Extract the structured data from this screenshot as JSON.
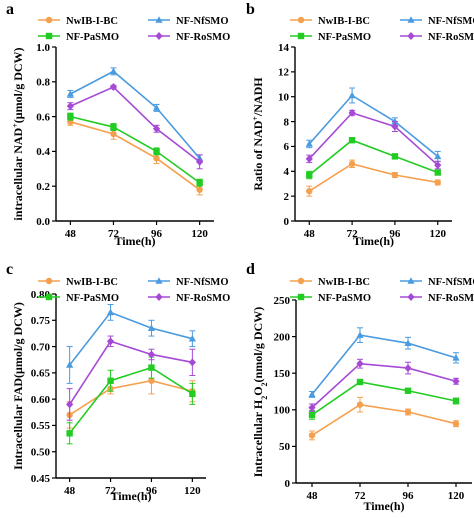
{
  "legend": {
    "entries": [
      {
        "name": "NwIB-I-BC",
        "color": "#F5A04E",
        "marker": "circle"
      },
      {
        "name": "NF-NfSMO",
        "color": "#4A9BE0",
        "marker": "triangle"
      },
      {
        "name": "NF-PaSMO",
        "color": "#22CC22",
        "marker": "square"
      },
      {
        "name": "NF-RoSMO",
        "color": "#A64AD6",
        "marker": "diamond"
      }
    ]
  },
  "chart_data": [
    {
      "panel": "a",
      "type": "line",
      "ylabel": "intracellular NAD+(μmol/g DCW)",
      "xlabel": "Time(h)",
      "x": [
        48,
        72,
        96,
        120
      ],
      "xlim": [
        40,
        128
      ],
      "ylim": [
        0.0,
        1.0
      ],
      "yticks": [
        "0.0",
        "0.2",
        "0.4",
        "0.6",
        "0.8",
        "1.0"
      ],
      "series": [
        {
          "name": "NwIB-I-BC",
          "values": [
            0.57,
            0.5,
            0.36,
            0.18
          ],
          "errors": [
            0.02,
            0.03,
            0.03,
            0.03
          ]
        },
        {
          "name": "NF-PaSMO",
          "values": [
            0.6,
            0.54,
            0.4,
            0.22
          ],
          "errors": [
            0.02,
            0.02,
            0.02,
            0.02
          ]
        },
        {
          "name": "NF-NfSMO",
          "values": [
            0.73,
            0.86,
            0.65,
            0.36
          ],
          "errors": [
            0.02,
            0.02,
            0.02,
            0.02
          ]
        },
        {
          "name": "NF-RoSMO",
          "values": [
            0.66,
            0.77,
            0.53,
            0.34
          ],
          "errors": [
            0.02,
            0.01,
            0.02,
            0.04
          ]
        }
      ]
    },
    {
      "panel": "b",
      "type": "line",
      "ylabel": "Ratio of NAD+/NADH",
      "xlabel": "Time(h)",
      "x": [
        48,
        72,
        96,
        120
      ],
      "xlim": [
        40,
        128
      ],
      "ylim": [
        0,
        14
      ],
      "yticks": [
        "0",
        "2",
        "4",
        "6",
        "8",
        "10",
        "12",
        "14"
      ],
      "series": [
        {
          "name": "NwIB-I-BC",
          "values": [
            2.4,
            4.6,
            3.7,
            3.1
          ],
          "errors": [
            0.4,
            0.3,
            0.2,
            0.2
          ]
        },
        {
          "name": "NF-PaSMO",
          "values": [
            3.7,
            6.5,
            5.2,
            3.9
          ],
          "errors": [
            0.3,
            0.1,
            0.2,
            0.2
          ]
        },
        {
          "name": "NF-NfSMO",
          "values": [
            6.2,
            10.1,
            8.0,
            5.2
          ],
          "errors": [
            0.3,
            0.6,
            0.3,
            0.4
          ]
        },
        {
          "name": "NF-RoSMO",
          "values": [
            5.0,
            8.7,
            7.6,
            4.5
          ],
          "errors": [
            0.3,
            0.2,
            0.4,
            0.3
          ]
        }
      ]
    },
    {
      "panel": "c",
      "type": "line",
      "ylabel": "Intracellular FAD(μmol/g DCW)",
      "xlabel": "Time(h)",
      "x": [
        48,
        72,
        96,
        120
      ],
      "xlim": [
        40,
        128
      ],
      "ylim": [
        0.45,
        0.8
      ],
      "yticks": [
        "0.45",
        "0.50",
        "0.55",
        "0.60",
        "0.65",
        "0.70",
        "0.75",
        "0.80"
      ],
      "series": [
        {
          "name": "NwIB-I-BC",
          "values": [
            0.57,
            0.62,
            0.635,
            0.615
          ],
          "errors": [
            0.025,
            0.01,
            0.025,
            0.02
          ]
        },
        {
          "name": "NF-PaSMO",
          "values": [
            0.535,
            0.635,
            0.66,
            0.61
          ],
          "errors": [
            0.02,
            0.02,
            0.02,
            0.02
          ]
        },
        {
          "name": "NF-NfSMO",
          "values": [
            0.665,
            0.765,
            0.735,
            0.715
          ],
          "errors": [
            0.035,
            0.015,
            0.015,
            0.015
          ]
        },
        {
          "name": "NF-RoSMO",
          "values": [
            0.59,
            0.71,
            0.685,
            0.67
          ],
          "errors": [
            0.03,
            0.01,
            0.01,
            0.025
          ]
        }
      ]
    },
    {
      "panel": "d",
      "type": "line",
      "ylabel": "Intracellular H2O2(nmol/g DCW)",
      "xlabel": "Time(h)",
      "x": [
        48,
        72,
        96,
        120
      ],
      "xlim": [
        40,
        128
      ],
      "ylim": [
        0,
        250
      ],
      "yticks": [
        "0",
        "50",
        "100",
        "150",
        "200",
        "250"
      ],
      "series": [
        {
          "name": "NwIB-I-BC",
          "values": [
            65,
            107,
            97,
            81
          ],
          "errors": [
            6,
            10,
            4,
            4
          ]
        },
        {
          "name": "NF-PaSMO",
          "values": [
            93,
            138,
            126,
            112
          ],
          "errors": [
            6,
            3,
            3,
            4
          ]
        },
        {
          "name": "NF-NfSMO",
          "values": [
            121,
            202,
            191,
            171
          ],
          "errors": [
            4,
            10,
            8,
            7
          ]
        },
        {
          "name": "NF-RoSMO",
          "values": [
            103,
            163,
            157,
            139
          ],
          "errors": [
            5,
            6,
            8,
            4
          ]
        }
      ]
    }
  ]
}
